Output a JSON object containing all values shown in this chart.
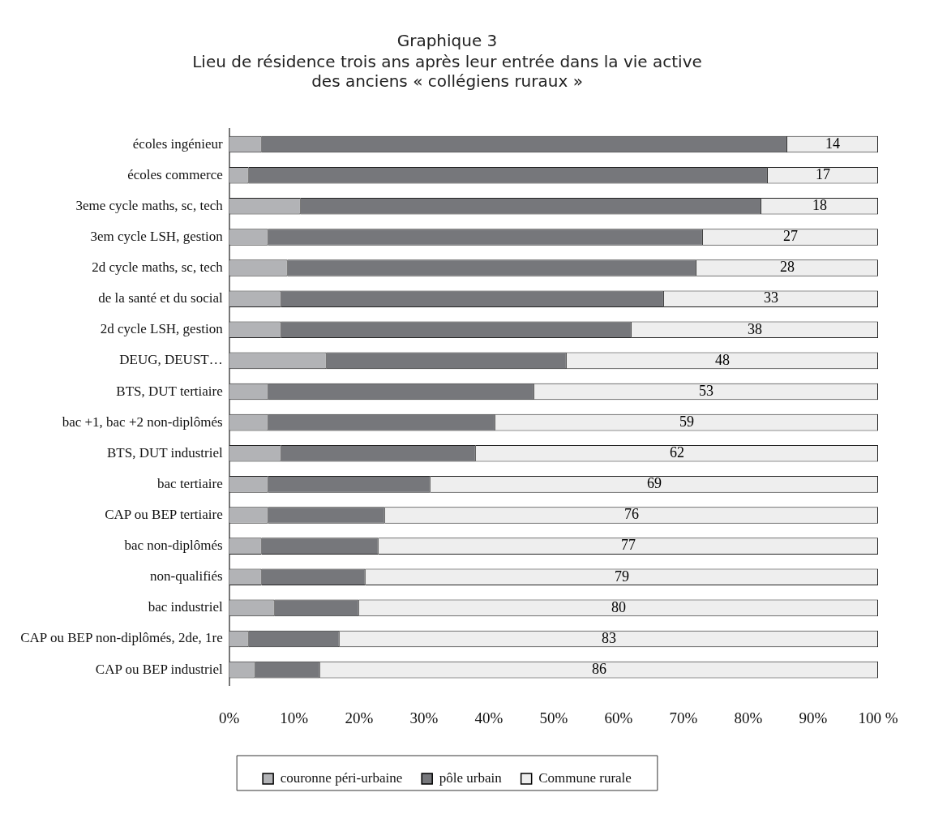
{
  "chart_data": {
    "type": "bar",
    "orientation": "horizontal",
    "stacked": true,
    "title": "Graphique 3",
    "subtitle": "Lieu de résidence trois ans après leur entrée dans la vie active des anciens « collégiens ruraux »",
    "categories": [
      "écoles ingénieur",
      "écoles commerce",
      "3eme cycle maths, sc, tech",
      "3em cycle LSH, gestion",
      "2d cycle maths, sc, tech",
      "de la santé et du social",
      "2d cycle LSH, gestion",
      "DEUG, DEUST…",
      "BTS, DUT tertiaire",
      "bac +1, bac +2 non-diplômés",
      "BTS, DUT industriel",
      "bac tertiaire",
      "CAP ou BEP tertiaire",
      "bac non-diplômés",
      "non-qualifiés",
      "bac industriel",
      "CAP ou BEP non-diplômés, 2de, 1re",
      "CAP ou BEP industriel"
    ],
    "series": [
      {
        "name": "couronne péri-urbaine",
        "color": "#b2b3b6",
        "values": [
          5,
          3,
          11,
          6,
          9,
          8,
          8,
          15,
          6,
          6,
          8,
          6,
          6,
          5,
          5,
          7,
          3,
          4
        ]
      },
      {
        "name": "pôle urbain",
        "color": "#76777b",
        "values": [
          81,
          80,
          71,
          67,
          63,
          59,
          54,
          37,
          41,
          35,
          30,
          25,
          18,
          18,
          16,
          13,
          14,
          10
        ]
      },
      {
        "name": "Commune rurale",
        "color": "#eeeeee",
        "values": [
          14,
          17,
          18,
          27,
          28,
          33,
          38,
          48,
          53,
          59,
          62,
          69,
          76,
          77,
          79,
          80,
          83,
          86
        ],
        "value_labels": [
          "14",
          "17",
          "18",
          "27",
          "28",
          "33",
          "38",
          "48",
          "53",
          "59",
          "62",
          "69",
          "76",
          "77",
          "79",
          "80",
          "83",
          "86"
        ]
      }
    ],
    "xlim": [
      0,
      100
    ],
    "xticks": [
      {
        "value": 0,
        "label": "0%"
      },
      {
        "value": 10,
        "label": "10%"
      },
      {
        "value": 20,
        "label": "20%"
      },
      {
        "value": 30,
        "label": "30%"
      },
      {
        "value": 40,
        "label": "40%"
      },
      {
        "value": 50,
        "label": "50%"
      },
      {
        "value": 60,
        "label": "60%"
      },
      {
        "value": 70,
        "label": "70%"
      },
      {
        "value": 80,
        "label": "80%"
      },
      {
        "value": 90,
        "label": "90%"
      },
      {
        "value": 100,
        "label": "100 %"
      }
    ],
    "grid": false,
    "legend": "bottom"
  }
}
